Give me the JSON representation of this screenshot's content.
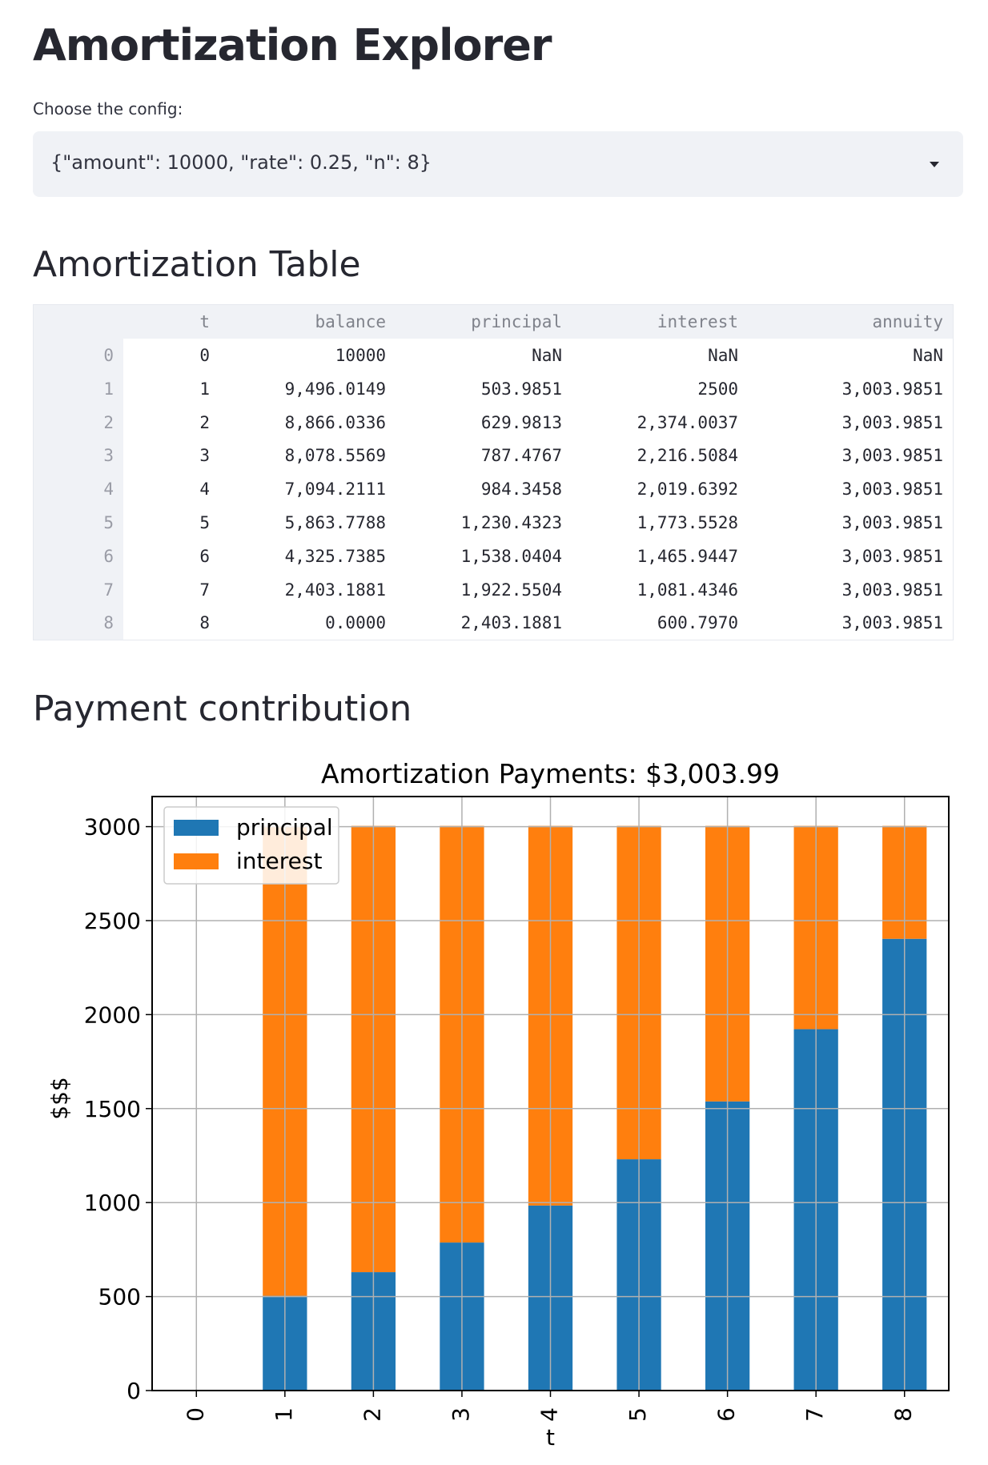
{
  "app": {
    "title": "Amortization Explorer",
    "config_label": "Choose the config:",
    "config_value": "{\"amount\": 10000, \"rate\": 0.25, \"n\": 8}",
    "table_heading": "Amortization Table",
    "chart_heading": "Payment contribution"
  },
  "table": {
    "columns": [
      "t",
      "balance",
      "principal",
      "interest",
      "annuity"
    ],
    "rows": [
      {
        "index": "0",
        "t": "0",
        "balance": "10000",
        "principal": "NaN",
        "interest": "NaN",
        "annuity": "NaN"
      },
      {
        "index": "1",
        "t": "1",
        "balance": "9,496.0149",
        "principal": "503.9851",
        "interest": "2500",
        "annuity": "3,003.9851"
      },
      {
        "index": "2",
        "t": "2",
        "balance": "8,866.0336",
        "principal": "629.9813",
        "interest": "2,374.0037",
        "annuity": "3,003.9851"
      },
      {
        "index": "3",
        "t": "3",
        "balance": "8,078.5569",
        "principal": "787.4767",
        "interest": "2,216.5084",
        "annuity": "3,003.9851"
      },
      {
        "index": "4",
        "t": "4",
        "balance": "7,094.2111",
        "principal": "984.3458",
        "interest": "2,019.6392",
        "annuity": "3,003.9851"
      },
      {
        "index": "5",
        "t": "5",
        "balance": "5,863.7788",
        "principal": "1,230.4323",
        "interest": "1,773.5528",
        "annuity": "3,003.9851"
      },
      {
        "index": "6",
        "t": "6",
        "balance": "4,325.7385",
        "principal": "1,538.0404",
        "interest": "1,465.9447",
        "annuity": "3,003.9851"
      },
      {
        "index": "7",
        "t": "7",
        "balance": "2,403.1881",
        "principal": "1,922.5504",
        "interest": "1,081.4346",
        "annuity": "3,003.9851"
      },
      {
        "index": "8",
        "t": "8",
        "balance": "0.0000",
        "principal": "2,403.1881",
        "interest": "600.7970",
        "annuity": "3,003.9851"
      }
    ]
  },
  "chart_data": {
    "type": "bar",
    "stacked": true,
    "title": "Amortization Payments: $3,003.99",
    "xlabel": "t",
    "ylabel": "$$$",
    "categories": [
      "0",
      "1",
      "2",
      "3",
      "4",
      "5",
      "6",
      "7",
      "8"
    ],
    "series": [
      {
        "name": "principal",
        "color": "#1f77b4",
        "values": [
          0,
          503.9851,
          629.9813,
          787.4767,
          984.3458,
          1230.4323,
          1538.0404,
          1922.5504,
          2403.1881
        ]
      },
      {
        "name": "interest",
        "color": "#ff7f0e",
        "values": [
          0,
          2500,
          2374.0037,
          2216.5084,
          2019.6392,
          1773.5528,
          1465.9447,
          1081.4346,
          600.797
        ]
      }
    ],
    "ylim": [
      0,
      3160
    ],
    "yticks": [
      "0",
      "500",
      "1000",
      "1500",
      "2000",
      "2500",
      "3000"
    ],
    "grid": true,
    "legend": "top-left"
  }
}
